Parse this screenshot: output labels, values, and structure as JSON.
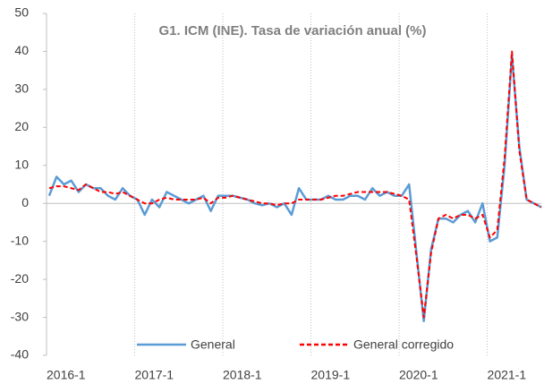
{
  "chart_data": {
    "type": "line",
    "title": "G1. ICM (INE). Tasa de variación anual (%)",
    "categories": [
      "2016-1",
      null,
      null,
      null,
      null,
      null,
      null,
      null,
      null,
      null,
      null,
      null,
      "2017-1",
      null,
      null,
      null,
      null,
      null,
      null,
      null,
      null,
      null,
      null,
      null,
      "2018-1",
      null,
      null,
      null,
      null,
      null,
      null,
      null,
      null,
      null,
      null,
      null,
      "2019-1",
      null,
      null,
      null,
      null,
      null,
      null,
      null,
      null,
      null,
      null,
      null,
      "2020-1",
      null,
      null,
      null,
      null,
      null,
      null,
      null,
      null,
      null,
      null,
      null,
      "2021-1",
      null,
      null,
      null,
      null,
      null,
      null,
      null
    ],
    "series": [
      {
        "name": "General",
        "color": "#5b9bd5",
        "dashed": false,
        "values": [
          2,
          7,
          5,
          6,
          3,
          5,
          4,
          4,
          2,
          1,
          4,
          2,
          1,
          -3,
          1,
          -1,
          3,
          2,
          1,
          0,
          1,
          2,
          -2,
          2,
          2,
          2,
          1.5,
          1,
          0,
          -0.5,
          0,
          -1,
          0,
          -3,
          4,
          1,
          1,
          1,
          2,
          1,
          1,
          2,
          2,
          1,
          4,
          2,
          3,
          2,
          2,
          5,
          -13,
          -31,
          -12,
          -4,
          -4,
          -5,
          -3,
          -2,
          -5,
          0,
          -10,
          -9,
          10,
          39,
          15,
          1,
          0,
          -1
        ]
      },
      {
        "name": "General corregido",
        "color": "#ff0000",
        "dashed": true,
        "values": [
          4,
          4.5,
          4.5,
          4,
          3.5,
          5,
          4,
          3,
          3,
          2.5,
          3,
          2,
          1,
          0,
          0,
          1,
          1.5,
          1,
          1,
          1,
          1,
          1.5,
          0,
          1.5,
          1.5,
          2,
          1.5,
          1,
          0.5,
          0,
          0,
          -0.5,
          0,
          0,
          1,
          1,
          1,
          1,
          1.5,
          2,
          2,
          2.5,
          3,
          3,
          3,
          3,
          3,
          2.5,
          2,
          1,
          -14,
          -30,
          -13,
          -4,
          -3,
          -4,
          -3,
          -3,
          -4,
          -3,
          -9,
          -7,
          12,
          40,
          14,
          1,
          0,
          -1
        ]
      }
    ],
    "ylim": [
      -40,
      50
    ],
    "yticks": [
      -40,
      -30,
      -20,
      -10,
      0,
      10,
      20,
      30,
      40,
      50
    ],
    "xgrid": true
  }
}
